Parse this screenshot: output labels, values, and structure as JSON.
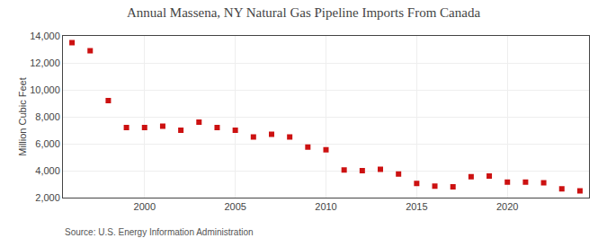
{
  "chart_data": {
    "type": "scatter",
    "title": "Annual Massena, NY Natural Gas Pipeline Imports From Canada",
    "ylabel": "Million Cubic Feet",
    "annotations": [
      "Source: U.S. Energy Information Administration"
    ],
    "x": [
      1996,
      1997,
      1998,
      1999,
      2000,
      2001,
      2002,
      2003,
      2004,
      2005,
      2006,
      2007,
      2008,
      2009,
      2010,
      2011,
      2012,
      2013,
      2014,
      2015,
      2016,
      2017,
      2018,
      2019,
      2020,
      2021,
      2022,
      2023,
      2024
    ],
    "values": [
      13500,
      12900,
      9200,
      7200,
      7200,
      7300,
      7000,
      7600,
      7200,
      7000,
      6500,
      6700,
      6500,
      5750,
      5550,
      4050,
      4000,
      4100,
      3750,
      3050,
      2850,
      2800,
      3550,
      3600,
      3150,
      3150,
      3100,
      2650,
      2500
    ],
    "color": "#cc1111",
    "marker": "square",
    "xlim": [
      1995.5,
      2024.5
    ],
    "xticks": [
      2000,
      2005,
      2010,
      2015,
      2020
    ],
    "ylim": [
      2000,
      14000
    ],
    "yticks": [
      {
        "value": 2000,
        "label": "2,000"
      },
      {
        "value": 4000,
        "label": "4,000"
      },
      {
        "value": 6000,
        "label": "6,000"
      },
      {
        "value": 8000,
        "label": "8,000"
      },
      {
        "value": 10000,
        "label": "10,000"
      },
      {
        "value": 12000,
        "label": "12,000"
      },
      {
        "value": 14000,
        "label": "14,000"
      }
    ],
    "grid": true
  }
}
